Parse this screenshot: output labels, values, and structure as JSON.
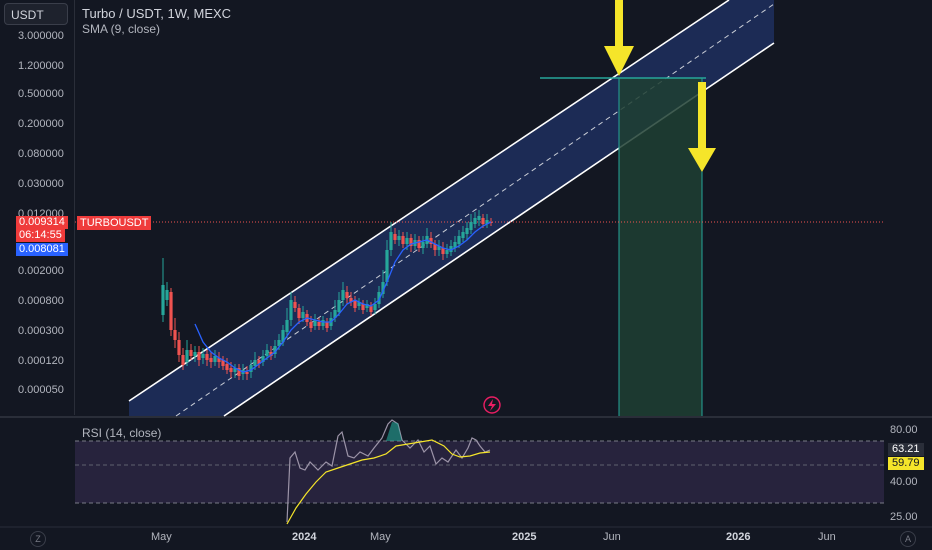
{
  "header": {
    "currency_label": "USDT",
    "symbol_title": "Turbo / USDT, 1W, MEXC",
    "indicator_label": "SMA (9, close)"
  },
  "price_axis": {
    "ticks": [
      "3.000000",
      "1.200000",
      "0.500000",
      "0.200000",
      "0.080000",
      "0.030000",
      "0.012000",
      "0.002000",
      "0.000800",
      "0.000300",
      "0.000120",
      "0.000050"
    ],
    "current_price": "0.009314",
    "countdown": "06:14:55",
    "sma_value": "0.008081",
    "symbol_tag": "TURBOUSDT"
  },
  "rsi": {
    "label": "RSI (14, close)",
    "ticks": [
      "80.00",
      "40.00",
      "25.00"
    ],
    "value": "63.21",
    "ma_value": "59.79"
  },
  "time_axis": {
    "labels": [
      "May",
      "2024",
      "May",
      "2025",
      "Jun",
      "2026",
      "Jun"
    ]
  },
  "corner_buttons": {
    "left": "Z",
    "right": "A"
  },
  "colors": {
    "background": "#131722",
    "channel_fill": "#1e2f5e",
    "up": "#26a69a",
    "down": "#ef5350",
    "sma": "#2962ff",
    "arrow": "#f5e52a",
    "target_zone": "#1e4032",
    "target_line": "#26a69a",
    "rsi_line": "#9c94a8",
    "rsi_ma": "#f5e52a"
  }
}
